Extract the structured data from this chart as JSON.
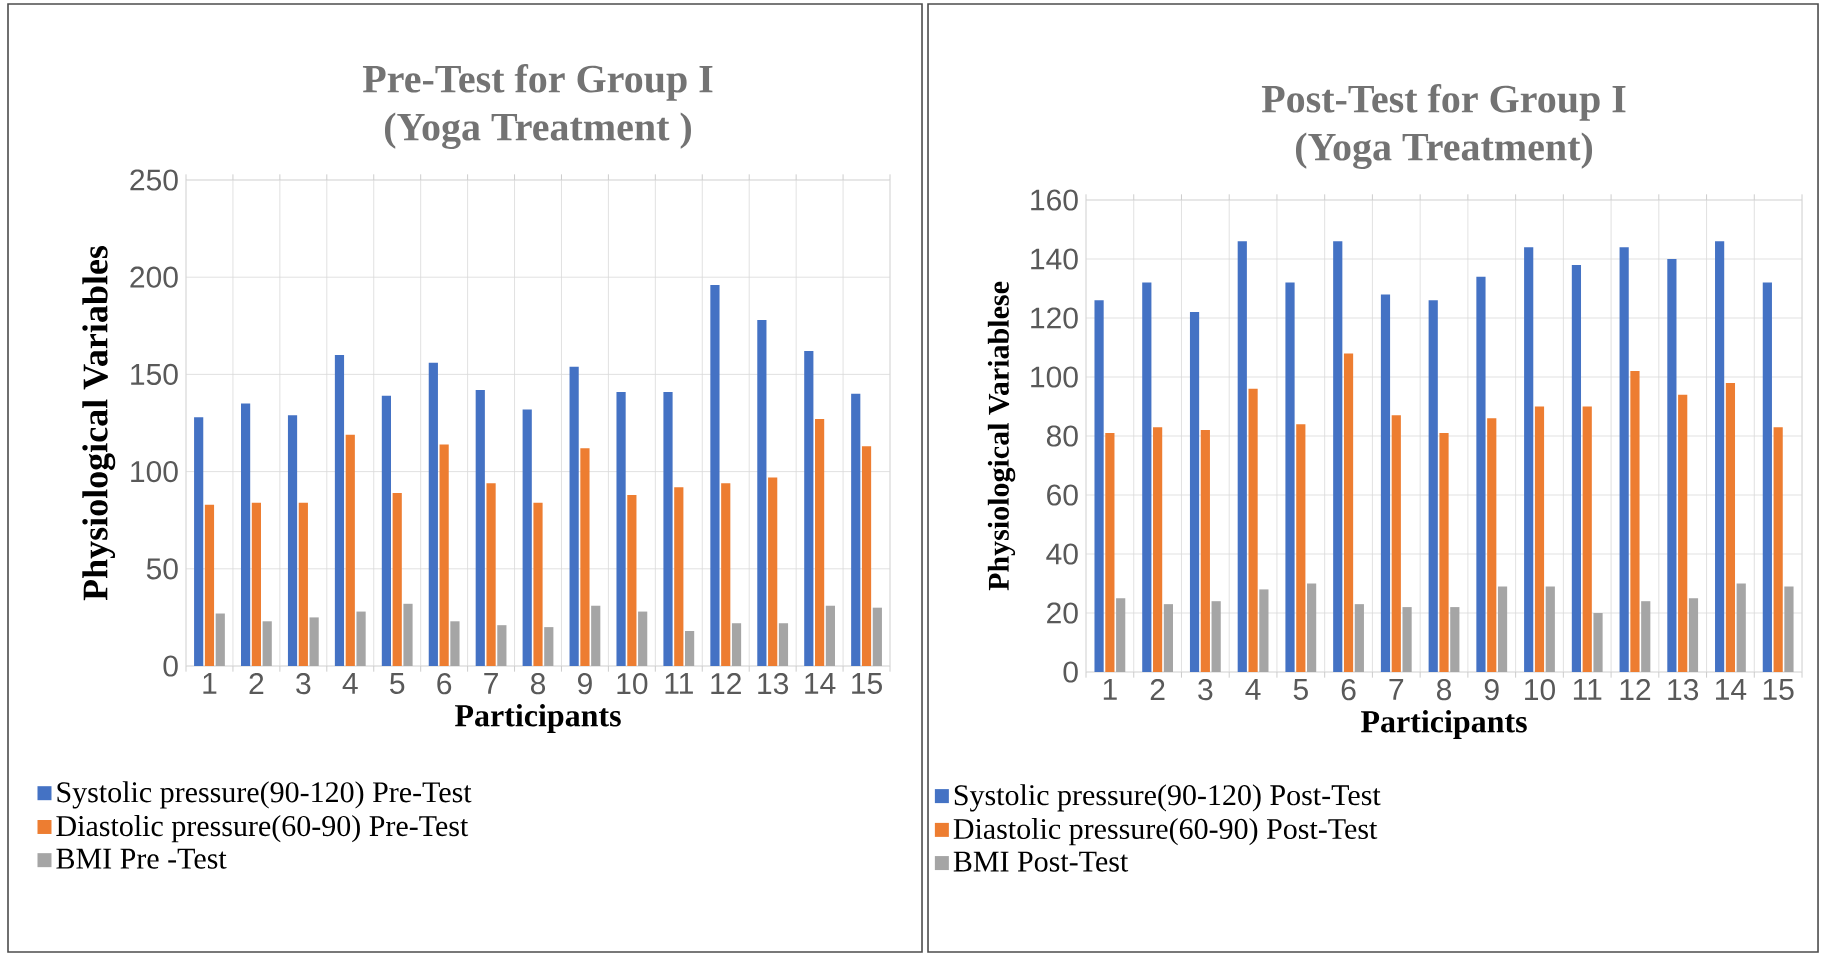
{
  "chart_data": [
    {
      "type": "bar",
      "title": "Pre-Test for Group I",
      "subtitle": "(Yoga Treatment )",
      "xlabel": "Participants",
      "ylabel": "Physiological Variables",
      "categories": [
        "1",
        "2",
        "3",
        "4",
        "5",
        "6",
        "7",
        "8",
        "9",
        "10",
        "11",
        "12",
        "13",
        "14",
        "15"
      ],
      "series": [
        {
          "name": "Systolic pressure(90-120) Pre-Test",
          "color": "#4472c4",
          "values": [
            128,
            135,
            129,
            160,
            139,
            156,
            142,
            132,
            154,
            141,
            141,
            196,
            178,
            162,
            140
          ]
        },
        {
          "name": "Diastolic pressure(60-90) Pre-Test",
          "color": "#ed7d31",
          "values": [
            83,
            84,
            84,
            119,
            89,
            114,
            94,
            84,
            112,
            88,
            92,
            94,
            97,
            127,
            113
          ]
        },
        {
          "name": "BMI Pre -Test",
          "color": "#a5a5a5",
          "values": [
            27,
            23,
            25,
            28,
            32,
            23,
            21,
            20,
            31,
            28,
            18,
            22,
            22,
            31,
            30
          ]
        }
      ],
      "ylim": [
        0,
        250
      ],
      "yticks": [
        0,
        50,
        100,
        150,
        200,
        250
      ],
      "grid": true,
      "legend": "bottom"
    },
    {
      "type": "bar",
      "title": "Post-Test for Group I",
      "subtitle": "(Yoga Treatment)",
      "xlabel": "Participants",
      "ylabel": "Physiological Variablese",
      "categories": [
        "1",
        "2",
        "3",
        "4",
        "5",
        "6",
        "7",
        "8",
        "9",
        "10",
        "11",
        "12",
        "13",
        "14",
        "15"
      ],
      "series": [
        {
          "name": "Systolic pressure(90-120) Post-Test",
          "color": "#4472c4",
          "values": [
            126,
            132,
            122,
            146,
            132,
            146,
            128,
            126,
            134,
            144,
            138,
            144,
            140,
            146,
            132
          ]
        },
        {
          "name": "Diastolic pressure(60-90) Post-Test",
          "color": "#ed7d31",
          "values": [
            81,
            83,
            82,
            96,
            84,
            108,
            87,
            81,
            86,
            90,
            90,
            102,
            94,
            98,
            83
          ]
        },
        {
          "name": "BMI Post-Test",
          "color": "#a5a5a5",
          "values": [
            25,
            23,
            24,
            28,
            30,
            23,
            22,
            22,
            29,
            29,
            20,
            24,
            25,
            30,
            29
          ]
        }
      ],
      "ylim": [
        0,
        160
      ],
      "yticks": [
        0,
        20,
        40,
        60,
        80,
        100,
        120,
        140,
        160
      ],
      "grid": true,
      "legend": "bottom"
    }
  ]
}
